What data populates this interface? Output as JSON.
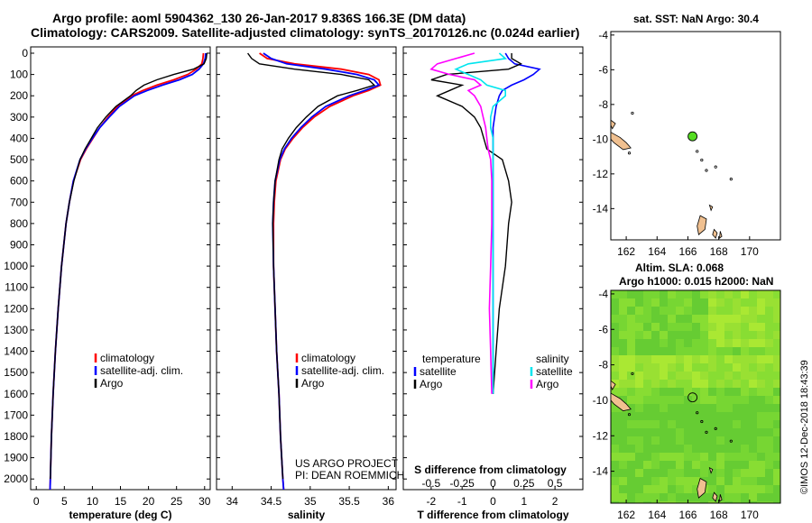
{
  "header": {
    "line1": "Argo profile: aoml 5904362_130 26-Jan-2017 9.836S 166.3E (DM data)",
    "line2": "Climatology: CARS2009. Satellite-adjusted climatology: synTS_20170126.nc (0.024d earlier)"
  },
  "sst_title": "sat. SST: NaN Argo: 30.4",
  "sla_title_1": "Altim. SLA: 0.068",
  "sla_title_2": "Argo h1000: 0.015 h2000: NaN",
  "credit": {
    "line1": "US ARGO PROJECT",
    "line2": "PI: DEAN ROEMMICH"
  },
  "imos_stamp": "©IMOS 12-Dec-2018 18:43:39",
  "colors": {
    "climatology": "#ff0000",
    "satellite": "#0000ff",
    "argo": "#000000",
    "salinity_sat": "#00e5ee",
    "salinity_argo": "#ff00ff",
    "map_land": "#f0c090",
    "map_point": "#55dd22"
  },
  "chart_data": [
    {
      "type": "line",
      "id": "temperature",
      "xlabel": "temperature (deg C)",
      "ylabel": "",
      "xlim": [
        -1,
        31
      ],
      "ylim": [
        2050,
        0
      ],
      "xticks": [
        0,
        5,
        10,
        15,
        20,
        25,
        30
      ],
      "yticks": [
        0,
        100,
        200,
        300,
        400,
        500,
        600,
        700,
        800,
        900,
        1000,
        1100,
        1200,
        1300,
        1400,
        1500,
        1600,
        1700,
        1800,
        1900,
        2000
      ],
      "legend": [
        "climatology",
        "satellite-adj. clim.",
        "Argo"
      ],
      "depth": [
        0,
        25,
        50,
        75,
        100,
        125,
        150,
        175,
        200,
        250,
        300,
        350,
        400,
        450,
        500,
        600,
        700,
        800,
        900,
        1000,
        1200,
        1400,
        1600,
        1800,
        2000,
        2050
      ],
      "series": [
        {
          "name": "climatology",
          "values": [
            29.8,
            29.7,
            29.5,
            28.5,
            27.0,
            24.5,
            21.5,
            19.0,
            17.0,
            14.5,
            12.8,
            11.3,
            10.1,
            8.9,
            7.9,
            6.6,
            5.9,
            5.3,
            4.9,
            4.5,
            3.9,
            3.4,
            3.0,
            2.7,
            2.5,
            2.45
          ]
        },
        {
          "name": "satellite-adj. clim.",
          "values": [
            30.2,
            30.1,
            29.8,
            29.0,
            27.8,
            25.5,
            22.5,
            19.8,
            17.5,
            14.8,
            13.0,
            11.3,
            10.0,
            8.8,
            7.8,
            6.6,
            5.9,
            5.3,
            4.9,
            4.5,
            3.9,
            3.4,
            3.0,
            2.7,
            2.5,
            2.45
          ]
        },
        {
          "name": "Argo",
          "values": [
            30.4,
            30.3,
            29.9,
            28.0,
            24.5,
            21.5,
            19.2,
            17.8,
            16.8,
            14.2,
            12.4,
            10.9,
            9.8,
            8.7,
            7.8,
            6.7,
            5.9,
            5.3,
            4.9,
            4.5,
            3.9,
            3.4,
            3.0,
            2.7,
            2.5,
            null
          ]
        }
      ]
    },
    {
      "type": "line",
      "id": "salinity",
      "xlabel": "salinity",
      "ylabel": "",
      "xlim": [
        33.8,
        36.1
      ],
      "ylim": [
        2050,
        0
      ],
      "xticks": [
        34,
        34.5,
        35,
        35.5,
        36
      ],
      "legend": [
        "climatology",
        "satellite-adj. clim.",
        "Argo"
      ],
      "depth": [
        0,
        25,
        50,
        75,
        100,
        125,
        150,
        175,
        200,
        250,
        300,
        350,
        400,
        450,
        500,
        600,
        700,
        800,
        1000,
        1200,
        1400,
        1600,
        1800,
        2000,
        2050
      ],
      "series": [
        {
          "name": "climatology",
          "values": [
            34.35,
            34.45,
            34.8,
            35.4,
            35.75,
            35.88,
            35.9,
            35.75,
            35.55,
            35.25,
            35.05,
            34.9,
            34.78,
            34.68,
            34.62,
            34.56,
            34.54,
            34.53,
            34.53,
            34.55,
            34.57,
            34.6,
            34.62,
            34.65,
            34.66
          ]
        },
        {
          "name": "satellite-adj. clim.",
          "values": [
            34.4,
            34.5,
            34.7,
            35.2,
            35.6,
            35.82,
            35.88,
            35.7,
            35.5,
            35.2,
            35.02,
            34.88,
            34.76,
            34.67,
            34.61,
            34.55,
            34.53,
            34.52,
            34.53,
            34.55,
            34.57,
            34.6,
            34.62,
            34.65,
            34.66
          ]
        },
        {
          "name": "Argo",
          "values": [
            34.2,
            34.25,
            34.35,
            34.8,
            35.4,
            35.75,
            35.82,
            35.6,
            35.35,
            35.1,
            34.95,
            34.82,
            34.72,
            34.64,
            34.6,
            34.55,
            34.53,
            34.52,
            34.53,
            34.55,
            34.57,
            34.6,
            34.62,
            34.65,
            null
          ]
        }
      ]
    },
    {
      "type": "line",
      "id": "differences",
      "xlabel": "T difference from climatology",
      "x2label": "S difference from climatology",
      "xlim": [
        -2.9,
        2.9
      ],
      "xticks": [
        -2,
        -1,
        0,
        1,
        2
      ],
      "x2ticks": [
        "-0.5",
        "-0.25",
        "0",
        "0.25",
        "0.5"
      ],
      "ylim": [
        2050,
        0
      ],
      "legend_left_title": "temperature",
      "legend_right_title": "salinity",
      "legend_left": [
        "satellite",
        "Argo"
      ],
      "legend_right": [
        "satellite",
        "Argo"
      ],
      "depth": [
        0,
        25,
        50,
        75,
        100,
        125,
        150,
        175,
        200,
        250,
        300,
        350,
        400,
        450,
        500,
        600,
        700,
        800,
        1000,
        1200,
        1400,
        1600
      ],
      "series": [
        {
          "name": "T satellite",
          "values": [
            0.4,
            0.5,
            0.7,
            1.5,
            1.3,
            1.0,
            0.6,
            0.3,
            0.2,
            0.1,
            0.05,
            0.0,
            0.0,
            0.0,
            0.0,
            0.0,
            0.0,
            0.0,
            0.0,
            0.0,
            0.0,
            0.0
          ]
        },
        {
          "name": "T Argo",
          "values": [
            0.6,
            0.6,
            0.9,
            0.5,
            -1.5,
            -2.0,
            -1.0,
            -1.4,
            -1.8,
            -1.0,
            -0.6,
            -0.4,
            -0.3,
            -0.2,
            0.3,
            0.5,
            0.6,
            0.5,
            0.4,
            0.2,
            0.1,
            0.0
          ]
        },
        {
          "name": "S satellite",
          "values": [
            0.05,
            0.1,
            -0.2,
            -0.3,
            -0.2,
            -0.1,
            -0.05,
            0.1,
            0.1,
            0.0,
            -0.02,
            -0.02,
            0.0,
            0.0,
            0.0,
            0.0,
            0.0,
            0.0,
            0.0,
            0.0,
            0.0,
            0.0
          ]
        },
        {
          "name": "S Argo",
          "values": [
            -0.15,
            -0.3,
            -0.45,
            -0.5,
            -0.35,
            -0.15,
            -0.1,
            -0.2,
            -0.15,
            -0.1,
            -0.08,
            -0.06,
            -0.05,
            -0.04,
            -0.02,
            -0.01,
            -0.01,
            -0.01,
            -0.02,
            -0.03,
            -0.02,
            -0.01
          ]
        }
      ]
    },
    {
      "type": "scatter",
      "id": "sst-map",
      "xlim": [
        161,
        172
      ],
      "ylim": [
        -15.8,
        -3.8
      ],
      "xticks": [
        162,
        164,
        166,
        168,
        170
      ],
      "yticks": [
        -4,
        -6,
        -8,
        -10,
        -12,
        -14
      ],
      "point": {
        "lon": 166.3,
        "lat": -9.836
      }
    },
    {
      "type": "heatmap",
      "id": "sla-map",
      "xlim": [
        161,
        172
      ],
      "ylim": [
        -15.8,
        -3.8
      ],
      "xticks": [
        162,
        164,
        166,
        168,
        170
      ],
      "yticks": [
        -4,
        -6,
        -8,
        -10,
        -12,
        -14
      ],
      "point": {
        "lon": 166.3,
        "lat": -9.836
      }
    }
  ]
}
